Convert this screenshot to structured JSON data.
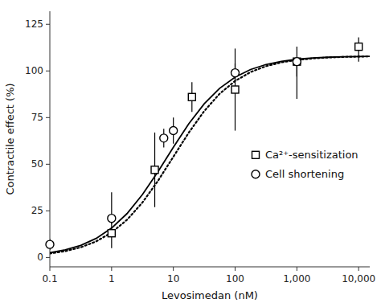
{
  "chart_data": {
    "type": "scatter",
    "xlabel": "Levosimedan (nM)",
    "ylabel": "Contractile effect (%)",
    "log": "x",
    "grid": false,
    "legend": "right",
    "xlim": [
      0.1,
      15135.61
    ],
    "ylim": [
      -5,
      132
    ],
    "xticks": [
      0.1,
      1,
      10,
      100,
      {
        "value": 1000,
        "label": "1,000"
      },
      {
        "value": 10000,
        "label": "10,000"
      }
    ],
    "yticks": [
      0,
      25,
      50,
      75,
      100,
      125
    ],
    "series": [
      {
        "name": "Ca²⁺-sensitization",
        "type": "scatter",
        "marker": "square",
        "color": "#000000",
        "x": [
          1,
          5,
          20,
          100,
          1000,
          10000
        ],
        "values": [
          13,
          47,
          86,
          90,
          105,
          113
        ],
        "error_low": [
          8,
          20,
          8,
          22,
          8,
          8
        ],
        "error_high": [
          8,
          20,
          8,
          22,
          8,
          5
        ]
      },
      {
        "name": "Cell shortening",
        "type": "scatter",
        "marker": "circle",
        "color": "#000000",
        "x": [
          0.1,
          1,
          7,
          10,
          100,
          1000
        ],
        "values": [
          7,
          21,
          64,
          68,
          99,
          105
        ],
        "error_low": [
          3,
          3,
          5,
          7,
          5,
          20
        ],
        "error_high": [
          3,
          14,
          5,
          7,
          5,
          0
        ]
      },
      {
        "type": "line",
        "line_style": "solid",
        "color": "#000000",
        "x": [
          0.1,
          0.17783,
          0.31623,
          0.56234,
          1,
          1.7783,
          3.1623,
          5.6234,
          10,
          17.783,
          31.623,
          56.234,
          100,
          177.83,
          316.23,
          562.34,
          1000,
          1778.3,
          3162.3,
          5623.4,
          10000,
          15135.61
        ],
        "values": [
          2.54,
          4.09,
          6.51,
          10.23,
          15.75,
          23.53,
          33.74,
          45.97,
          59.11,
          71.66,
          82.39,
          90.71,
          96.7,
          100.78,
          103.46,
          105.17,
          106.25,
          106.92,
          107.33,
          107.59,
          107.75,
          107.82
        ]
      },
      {
        "type": "line",
        "line_style": "dotted",
        "color": "#000000",
        "x": [
          0.1,
          0.17783,
          0.31623,
          0.56234,
          1,
          1.7783,
          3.1623,
          5.6234,
          10,
          17.783,
          31.623,
          56.234,
          100,
          177.83,
          316.23,
          562.34,
          1000,
          1778.3,
          3162.3,
          5623.4,
          10000,
          15135.61
        ],
        "values": [
          2.11,
          3.4,
          5.44,
          8.61,
          13.37,
          20.22,
          29.5,
          41.05,
          54,
          66.95,
          78.5,
          87.78,
          94.63,
          99.39,
          102.56,
          104.6,
          105.89,
          106.69,
          107.2,
          107.51,
          107.7,
          107.79
        ]
      }
    ]
  }
}
